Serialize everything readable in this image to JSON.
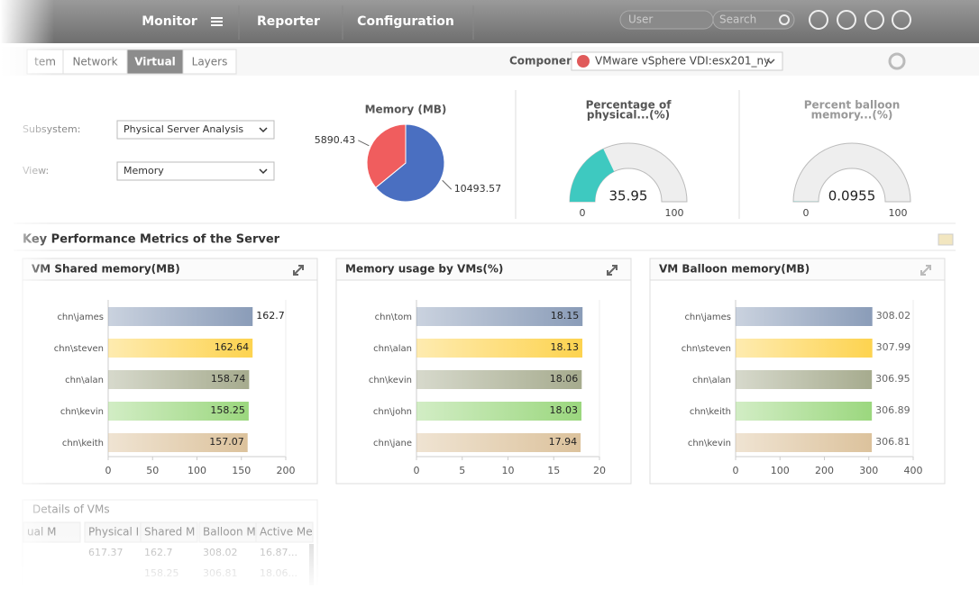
{
  "nav": {
    "items": [
      "Monitor",
      "Reporter",
      "Configuration"
    ],
    "user_placeholder": "User",
    "search_placeholder": "Search"
  },
  "tabs": {
    "items": [
      "tem",
      "Network",
      "Virtual",
      "Layers"
    ],
    "active": 2
  },
  "component": {
    "label": "Component",
    "value": "VMware vSphere VDI:esx201_ny"
  },
  "filters": [
    {
      "label": "Subsystem:",
      "value": "Physical Server Analysis"
    },
    {
      "label": "View:",
      "value": "Memory"
    }
  ],
  "memory_pie": {
    "type": "pie",
    "title": "Memory (MB)",
    "values": [
      5890.43,
      10493.57
    ],
    "colors": [
      "#f05d5e",
      "#4a6fc1"
    ]
  },
  "gauges": [
    {
      "type": "gauge",
      "title_lines": [
        "Percentage of",
        "physical...(%)"
      ],
      "value": 35.95,
      "lim": [
        0,
        100
      ],
      "ticks": [
        0,
        100
      ],
      "color": "#3ec9c0"
    },
    {
      "type": "gauge",
      "title_lines": [
        "Percent balloon",
        "memory...(%)"
      ],
      "value": 0.0955,
      "lim": [
        0,
        100
      ],
      "ticks": [
        0,
        100
      ],
      "color": "#3ec9c0"
    }
  ],
  "section_title": "Key Performance Metrics of the Server",
  "panels": [
    {
      "type": "hbar",
      "title": "VM Shared memory(MB)",
      "categories": [
        "chn\\james",
        "chn\\steven",
        "chn\\alan",
        "chn\\kevin",
        "chn\\keith"
      ],
      "values": [
        162.7,
        162.64,
        158.74,
        158.25,
        157.07
      ],
      "xlim": [
        0,
        200
      ],
      "xticks": [
        0,
        50,
        100,
        150,
        200
      ],
      "colors": [
        "#8a9cb8",
        "#fdd34f",
        "#a6ab8e",
        "#9bd77e",
        "#dcc29c"
      ]
    },
    {
      "type": "hbar",
      "title": "Memory usage by VMs(%)",
      "categories": [
        "chn\\tom",
        "chn\\alan",
        "chn\\kevin",
        "chn\\john",
        "chn\\jane"
      ],
      "values": [
        18.15,
        18.13,
        18.06,
        18.03,
        17.94
      ],
      "xlim": [
        0,
        20
      ],
      "xticks": [
        0,
        5,
        10,
        15,
        20
      ],
      "colors": [
        "#8a9cb8",
        "#fdd34f",
        "#a6ab8e",
        "#9bd77e",
        "#dcc29c"
      ]
    },
    {
      "type": "hbar",
      "title": "VM Balloon memory(MB)",
      "categories": [
        "chn\\james",
        "chn\\steven",
        "chn\\alan",
        "chn\\keith",
        "chn\\kevin"
      ],
      "values": [
        308.02,
        307.99,
        306.95,
        306.89,
        306.81
      ],
      "xlim": [
        0,
        400
      ],
      "xticks": [
        0,
        100,
        200,
        300,
        400
      ],
      "colors": [
        "#8a9cb8",
        "#fdd34f",
        "#a6ab8e",
        "#9bd77e",
        "#dcc29c"
      ]
    }
  ],
  "table": {
    "title": "Details of VMs",
    "headers": [
      "ual M",
      "Physical I",
      "Shared M",
      "Balloon M",
      "Active Me"
    ],
    "rows": [
      [
        "617.37",
        "162.7",
        "308.02",
        "16.87..."
      ],
      [
        "158.25",
        "306.81",
        "18.06..."
      ]
    ]
  }
}
